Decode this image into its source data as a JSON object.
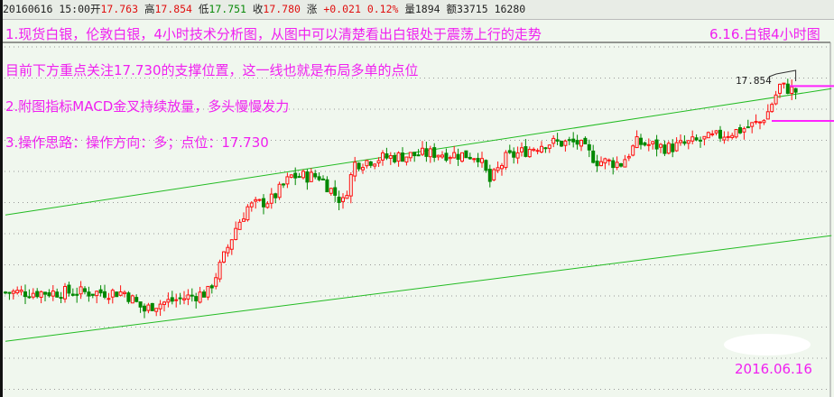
{
  "quote": {
    "date": "20160616",
    "time": "15:00",
    "open_label": "开",
    "open": "17.763",
    "high_label": "高",
    "high": "17.854",
    "low_label": "低",
    "low": "17.751",
    "close_label": "收",
    "close": "17.780",
    "change_label": "涨",
    "change": "+0.021",
    "change_pct": "0.12%",
    "volume_label": "量",
    "volume": "1894",
    "amount_label": "额",
    "amount": "33715",
    "extra": "16280"
  },
  "annotations": {
    "line1": "1.现货白银，伦敦白银，4小时技术分析图，从图中可以清楚看出白银处于震荡上行的走势",
    "title_right": "6.16.白银4小时图",
    "line_support": "目前下方重点关注17.730的支撑位置，这一线也就是布局多单的点位",
    "line2": "2.附图指标MACD金叉持续放量，多头慢慢发力",
    "line3": "3.操作思路：操作方向：多；点位：17.730",
    "date_stamp": "2016.06.16"
  },
  "colors": {
    "up": "#ff1010",
    "down": "#008800",
    "channel": "#22bb22",
    "marker": "#ff22ff",
    "background": "#f0f7ee"
  },
  "chart_data": {
    "type": "candlestick",
    "candle_count": 200,
    "high_label": "17.854",
    "close_trend": [
      [
        0,
        17.0
      ],
      [
        30,
        17.0
      ],
      [
        35,
        16.93
      ],
      [
        37,
        16.95
      ],
      [
        51,
        17.0
      ],
      [
        54,
        17.1
      ],
      [
        58,
        17.25
      ],
      [
        61,
        17.33
      ],
      [
        67,
        17.36
      ],
      [
        72,
        17.45
      ],
      [
        79,
        17.45
      ],
      [
        83,
        17.38
      ],
      [
        85,
        17.35
      ],
      [
        88,
        17.5
      ],
      [
        94,
        17.52
      ],
      [
        108,
        17.54
      ],
      [
        119,
        17.53
      ],
      [
        122,
        17.43
      ],
      [
        126,
        17.52
      ],
      [
        136,
        17.58
      ],
      [
        144,
        17.58
      ],
      [
        149,
        17.51
      ],
      [
        155,
        17.5
      ],
      [
        159,
        17.58
      ],
      [
        167,
        17.56
      ],
      [
        178,
        17.6
      ],
      [
        185,
        17.63
      ],
      [
        190,
        17.66
      ],
      [
        192,
        17.7
      ],
      [
        195,
        17.8
      ],
      [
        199,
        17.78
      ]
    ],
    "channel_upper": [
      [
        0,
        17.3
      ],
      [
        208,
        17.79
      ]
    ],
    "channel_lower": [
      [
        0,
        16.81
      ],
      [
        208,
        17.22
      ]
    ],
    "support_levels": [
      17.8,
      17.665
    ],
    "grid": true
  }
}
